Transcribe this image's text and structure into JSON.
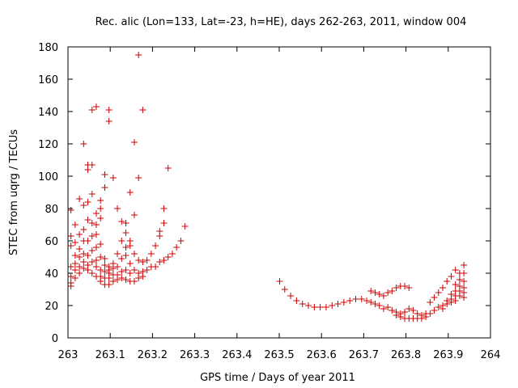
{
  "chart_data": {
    "type": "scatter",
    "title": "Rec. alic (Lon=133, Lat=-23, h=HE), days 262-263, 2011, window 004",
    "xlabel": "GPS time / Days of year 2011",
    "ylabel": "STEC from uqrg / TECUs",
    "xlim": [
      263,
      264
    ],
    "ylim": [
      0,
      180
    ],
    "xticks": [
      {
        "value": 263,
        "label": "263"
      },
      {
        "value": 263.1,
        "label": "263.1"
      },
      {
        "value": 263.2,
        "label": "263.2"
      },
      {
        "value": 263.3,
        "label": "263.3"
      },
      {
        "value": 263.4,
        "label": "263.4"
      },
      {
        "value": 263.5,
        "label": "263.5"
      },
      {
        "value": 263.6,
        "label": "263.6"
      },
      {
        "value": 263.7,
        "label": "263.7"
      },
      {
        "value": 263.8,
        "label": "263.8"
      },
      {
        "value": 263.9,
        "label": "263.9"
      },
      {
        "value": 264,
        "label": "264"
      }
    ],
    "yticks": [
      {
        "value": 0,
        "label": "0"
      },
      {
        "value": 20,
        "label": "20"
      },
      {
        "value": 40,
        "label": "40"
      },
      {
        "value": 60,
        "label": "60"
      },
      {
        "value": 80,
        "label": "80"
      },
      {
        "value": 100,
        "label": "100"
      },
      {
        "value": 120,
        "label": "120"
      },
      {
        "value": 140,
        "label": "140"
      },
      {
        "value": 160,
        "label": "160"
      },
      {
        "value": 180,
        "label": "180"
      }
    ],
    "grid": false,
    "marker": "+",
    "color": "#cc0000",
    "series": [
      {
        "points": [
          [
            263.007,
            79
          ],
          [
            263.007,
            63
          ],
          [
            263.007,
            57
          ],
          [
            263.007,
            44
          ],
          [
            263.007,
            38
          ],
          [
            263.007,
            34
          ],
          [
            263.007,
            32
          ],
          [
            263.017,
            70
          ],
          [
            263.017,
            59
          ],
          [
            263.017,
            51
          ],
          [
            263.017,
            46
          ],
          [
            263.017,
            42
          ],
          [
            263.017,
            37
          ],
          [
            263.027,
            86
          ],
          [
            263.027,
            64
          ],
          [
            263.027,
            55
          ],
          [
            263.027,
            50
          ],
          [
            263.027,
            44
          ],
          [
            263.027,
            40
          ],
          [
            263.037,
            120
          ],
          [
            263.037,
            82
          ],
          [
            263.037,
            67
          ],
          [
            263.037,
            60
          ],
          [
            263.037,
            52
          ],
          [
            263.037,
            47
          ],
          [
            263.037,
            43
          ],
          [
            263.047,
            107
          ],
          [
            263.047,
            104
          ],
          [
            263.047,
            84
          ],
          [
            263.047,
            73
          ],
          [
            263.047,
            60
          ],
          [
            263.047,
            51
          ],
          [
            263.047,
            45
          ],
          [
            263.047,
            42
          ],
          [
            263.057,
            141
          ],
          [
            263.057,
            107
          ],
          [
            263.057,
            89
          ],
          [
            263.057,
            71
          ],
          [
            263.057,
            63
          ],
          [
            263.057,
            54
          ],
          [
            263.057,
            47
          ],
          [
            263.057,
            40
          ],
          [
            263.067,
            143
          ],
          [
            263.067,
            77
          ],
          [
            263.067,
            70
          ],
          [
            263.067,
            64
          ],
          [
            263.067,
            56
          ],
          [
            263.067,
            48
          ],
          [
            263.067,
            44
          ],
          [
            263.067,
            38
          ],
          [
            263.077,
            85
          ],
          [
            263.077,
            80
          ],
          [
            263.077,
            74
          ],
          [
            263.077,
            58
          ],
          [
            263.077,
            50
          ],
          [
            263.077,
            42
          ],
          [
            263.077,
            38
          ],
          [
            263.077,
            35
          ],
          [
            263.087,
            101
          ],
          [
            263.087,
            93
          ],
          [
            263.087,
            49
          ],
          [
            263.087,
            45
          ],
          [
            263.087,
            41
          ],
          [
            263.087,
            37
          ],
          [
            263.087,
            33
          ],
          [
            263.097,
            141
          ],
          [
            263.097,
            134
          ],
          [
            263.097,
            44
          ],
          [
            263.097,
            42
          ],
          [
            263.097,
            40
          ],
          [
            263.097,
            37
          ],
          [
            263.097,
            33
          ],
          [
            263.107,
            99
          ],
          [
            263.107,
            46
          ],
          [
            263.107,
            43
          ],
          [
            263.107,
            39
          ],
          [
            263.107,
            35
          ],
          [
            263.117,
            80
          ],
          [
            263.117,
            52
          ],
          [
            263.117,
            44
          ],
          [
            263.117,
            39
          ],
          [
            263.117,
            36
          ],
          [
            263.127,
            72
          ],
          [
            263.127,
            60
          ],
          [
            263.127,
            49
          ],
          [
            263.127,
            41
          ],
          [
            263.127,
            37
          ],
          [
            263.137,
            71
          ],
          [
            263.137,
            65
          ],
          [
            263.137,
            56
          ],
          [
            263.137,
            51
          ],
          [
            263.137,
            42
          ],
          [
            263.137,
            36
          ],
          [
            263.147,
            90
          ],
          [
            263.147,
            60
          ],
          [
            263.147,
            57
          ],
          [
            263.147,
            46
          ],
          [
            263.147,
            40
          ],
          [
            263.147,
            35
          ],
          [
            263.157,
            121
          ],
          [
            263.157,
            76
          ],
          [
            263.157,
            52
          ],
          [
            263.157,
            42
          ],
          [
            263.157,
            35
          ],
          [
            263.167,
            175
          ],
          [
            263.167,
            99
          ],
          [
            263.167,
            48
          ],
          [
            263.167,
            40
          ],
          [
            263.167,
            37
          ],
          [
            263.177,
            141
          ],
          [
            263.177,
            47
          ],
          [
            263.177,
            41
          ],
          [
            263.177,
            38
          ],
          [
            263.187,
            48
          ],
          [
            263.187,
            42
          ],
          [
            263.197,
            52
          ],
          [
            263.197,
            44
          ],
          [
            263.207,
            57
          ],
          [
            263.207,
            44
          ],
          [
            263.217,
            66
          ],
          [
            263.217,
            63
          ],
          [
            263.217,
            47
          ],
          [
            263.227,
            80
          ],
          [
            263.227,
            71
          ],
          [
            263.227,
            48
          ],
          [
            263.237,
            105
          ],
          [
            263.237,
            50
          ],
          [
            263.247,
            52
          ],
          [
            263.257,
            56
          ],
          [
            263.267,
            60
          ],
          [
            263.277,
            69
          ],
          [
            263.501,
            35
          ],
          [
            263.513,
            30
          ],
          [
            263.527,
            26
          ],
          [
            263.541,
            23
          ],
          [
            263.555,
            21
          ],
          [
            263.569,
            20
          ],
          [
            263.583,
            19
          ],
          [
            263.597,
            19
          ],
          [
            263.611,
            19
          ],
          [
            263.625,
            20
          ],
          [
            263.639,
            21
          ],
          [
            263.653,
            22
          ],
          [
            263.667,
            23
          ],
          [
            263.681,
            24
          ],
          [
            263.695,
            24
          ],
          [
            263.707,
            23
          ],
          [
            263.717,
            22
          ],
          [
            263.727,
            21
          ],
          [
            263.717,
            29
          ],
          [
            263.727,
            28
          ],
          [
            263.737,
            27
          ],
          [
            263.747,
            26
          ],
          [
            263.757,
            28
          ],
          [
            263.767,
            29
          ],
          [
            263.777,
            31
          ],
          [
            263.787,
            32
          ],
          [
            263.797,
            32
          ],
          [
            263.807,
            31
          ],
          [
            263.737,
            20
          ],
          [
            263.747,
            18
          ],
          [
            263.757,
            19
          ],
          [
            263.767,
            17
          ],
          [
            263.777,
            16
          ],
          [
            263.787,
            15
          ],
          [
            263.797,
            16
          ],
          [
            263.807,
            18
          ],
          [
            263.817,
            17
          ],
          [
            263.827,
            15
          ],
          [
            263.837,
            14
          ],
          [
            263.847,
            15
          ],
          [
            263.777,
            14
          ],
          [
            263.787,
            13
          ],
          [
            263.797,
            12
          ],
          [
            263.807,
            12
          ],
          [
            263.817,
            12
          ],
          [
            263.827,
            12
          ],
          [
            263.837,
            12
          ],
          [
            263.847,
            13
          ],
          [
            263.857,
            15
          ],
          [
            263.867,
            17
          ],
          [
            263.877,
            19
          ],
          [
            263.857,
            22
          ],
          [
            263.867,
            25
          ],
          [
            263.877,
            28
          ],
          [
            263.887,
            31
          ],
          [
            263.897,
            35
          ],
          [
            263.907,
            38
          ],
          [
            263.917,
            42
          ],
          [
            263.887,
            20
          ],
          [
            263.887,
            18
          ],
          [
            263.897,
            23
          ],
          [
            263.897,
            21
          ],
          [
            263.907,
            27
          ],
          [
            263.907,
            24
          ],
          [
            263.907,
            22
          ],
          [
            263.917,
            33
          ],
          [
            263.917,
            29
          ],
          [
            263.917,
            26
          ],
          [
            263.917,
            23
          ],
          [
            263.927,
            40
          ],
          [
            263.927,
            36
          ],
          [
            263.927,
            32
          ],
          [
            263.927,
            29
          ],
          [
            263.927,
            26
          ],
          [
            263.937,
            45
          ],
          [
            263.937,
            40
          ],
          [
            263.937,
            35
          ],
          [
            263.937,
            31
          ],
          [
            263.937,
            28
          ],
          [
            263.937,
            25
          ]
        ]
      }
    ]
  }
}
